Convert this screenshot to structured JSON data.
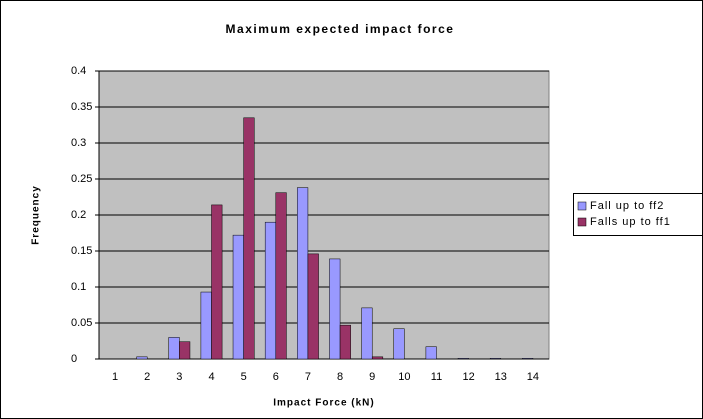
{
  "chart_data": {
    "type": "bar",
    "title": "Maximum expected impact force",
    "x_label": "Impact Force (kN)",
    "y_label": "Frequency",
    "categories": [
      "1",
      "2",
      "3",
      "4",
      "5",
      "6",
      "7",
      "8",
      "9",
      "10",
      "11",
      "12",
      "13",
      "14"
    ],
    "series": [
      {
        "name": "Fall up to ff2",
        "color": "#9999ff",
        "values": [
          0,
          0.003,
          0.03,
          0.093,
          0.172,
          0.19,
          0.238,
          0.139,
          0.071,
          0.042,
          0.017,
          0.001,
          0.001,
          0.001
        ]
      },
      {
        "name": "Falls up to ff1",
        "color": "#993366",
        "values": [
          0,
          0,
          0.024,
          0.214,
          0.335,
          0.231,
          0.146,
          0.047,
          0.003,
          0,
          0,
          0,
          0,
          0
        ]
      }
    ],
    "ylim": [
      0,
      0.4
    ],
    "yticks": [
      0,
      0.05,
      0.1,
      0.15,
      0.2,
      0.25,
      0.3,
      0.35,
      0.4
    ],
    "grid": true,
    "legend": "right"
  }
}
